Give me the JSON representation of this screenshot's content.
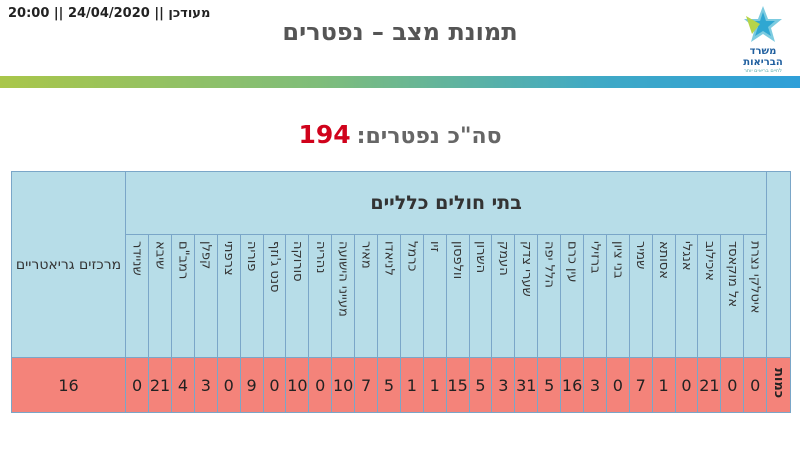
{
  "header": {
    "updated_label": "מעודכן || 24/04/2020 || 20:00",
    "title": "תמונת מצב – נפטרים",
    "logo_line1": "משרד",
    "logo_line2": "הבריאות",
    "logo_sub": "לחיים בריאים יותר"
  },
  "colors": {
    "values_row": "#f4837a",
    "header_cells": "#b7dde8",
    "total_number": "#d0021b"
  },
  "summary": {
    "label": "סה\"כ נפטרים:",
    "value": "194"
  },
  "table": {
    "group_label": "בתי חולים כלליים",
    "geriatric_label": "מרכזים גריאטריים",
    "row_label": "כמות",
    "hospitals": [
      {
        "name": "איטלקי נצרת",
        "value": "0"
      },
      {
        "name": "אל מוקאסד",
        "value": "0"
      },
      {
        "name": "איכילוב",
        "value": "21"
      },
      {
        "name": "אנגלי",
        "value": "0"
      },
      {
        "name": "אסותא",
        "value": "1"
      },
      {
        "name": "שמיר",
        "value": "7"
      },
      {
        "name": "בני ציון",
        "value": "0"
      },
      {
        "name": "ברזילי",
        "value": "3"
      },
      {
        "name": "עין כרם",
        "value": "16"
      },
      {
        "name": "הלל יפה",
        "value": "5"
      },
      {
        "name": "שערי צדק",
        "value": "31"
      },
      {
        "name": "העמק",
        "value": "3"
      },
      {
        "name": "השרון",
        "value": "5"
      },
      {
        "name": "וולפסון",
        "value": "15"
      },
      {
        "name": "זיו",
        "value": "1"
      },
      {
        "name": "כרמל",
        "value": "1"
      },
      {
        "name": "לניאדו",
        "value": "5"
      },
      {
        "name": "מאיר",
        "value": "7"
      },
      {
        "name": "מעייני הישועה",
        "value": "10"
      },
      {
        "name": "נהריה",
        "value": "0"
      },
      {
        "name": "סורוקה",
        "value": "10"
      },
      {
        "name": "סנט ג'וזף",
        "value": "0"
      },
      {
        "name": "פוריה",
        "value": "9"
      },
      {
        "name": "צרפתי",
        "value": "0"
      },
      {
        "name": "קפלן",
        "value": "3"
      },
      {
        "name": "רמב\"ם",
        "value": "4"
      },
      {
        "name": "שיבא",
        "value": "21"
      },
      {
        "name": "שניידר",
        "value": "0"
      }
    ],
    "geriatric_value": "16"
  }
}
